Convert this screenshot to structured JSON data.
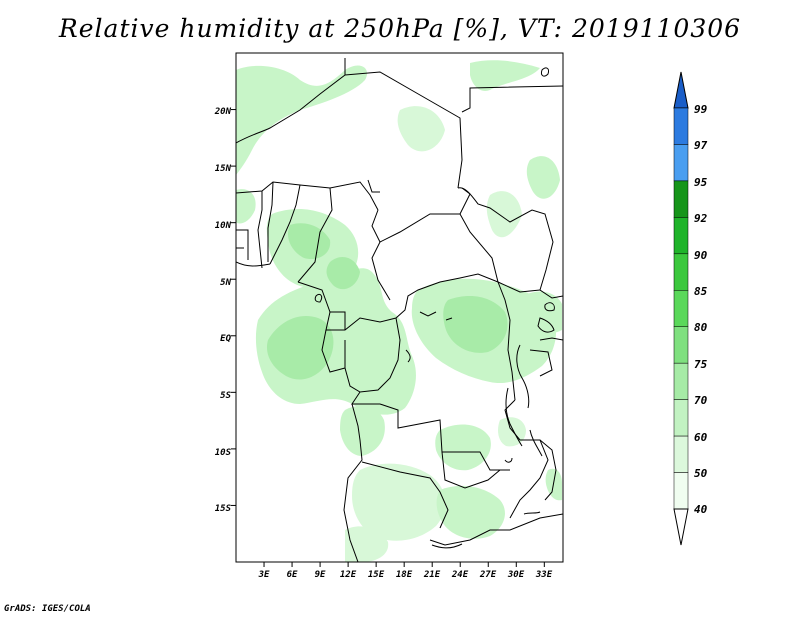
{
  "title": "Relative humidity at 250hPa [%], VT: 2019110306",
  "credit": "GrADS: IGES/COLA",
  "map": {
    "lon_range": [
      0,
      35
    ],
    "lat_range": [
      -20,
      25
    ],
    "lon_tick_labels": [
      "3E",
      "6E",
      "9E",
      "12E",
      "15E",
      "18E",
      "21E",
      "24E",
      "27E",
      "30E",
      "33E"
    ],
    "lat_tick_labels": [
      "20N",
      "15N",
      "10N",
      "5N",
      "EQ",
      "5S",
      "10S",
      "15S"
    ],
    "field_colors": {
      "land_bg": "#ffffff",
      "light_green": "#c8f5c8",
      "mid_green": "#a8eba8"
    }
  },
  "colorbar": {
    "labels": [
      "99",
      "97",
      "95",
      "92",
      "90",
      "85",
      "80",
      "75",
      "70",
      "60",
      "50",
      "40"
    ],
    "colors": [
      "#1a5ec8",
      "#2c7be0",
      "#4a9ef0",
      "#16951a",
      "#1fb42a",
      "#3bc83d",
      "#5ad85a",
      "#7fe07f",
      "#a6eba6",
      "#c2f2c2",
      "#dcf8dc",
      "#f0fdf0"
    ]
  }
}
